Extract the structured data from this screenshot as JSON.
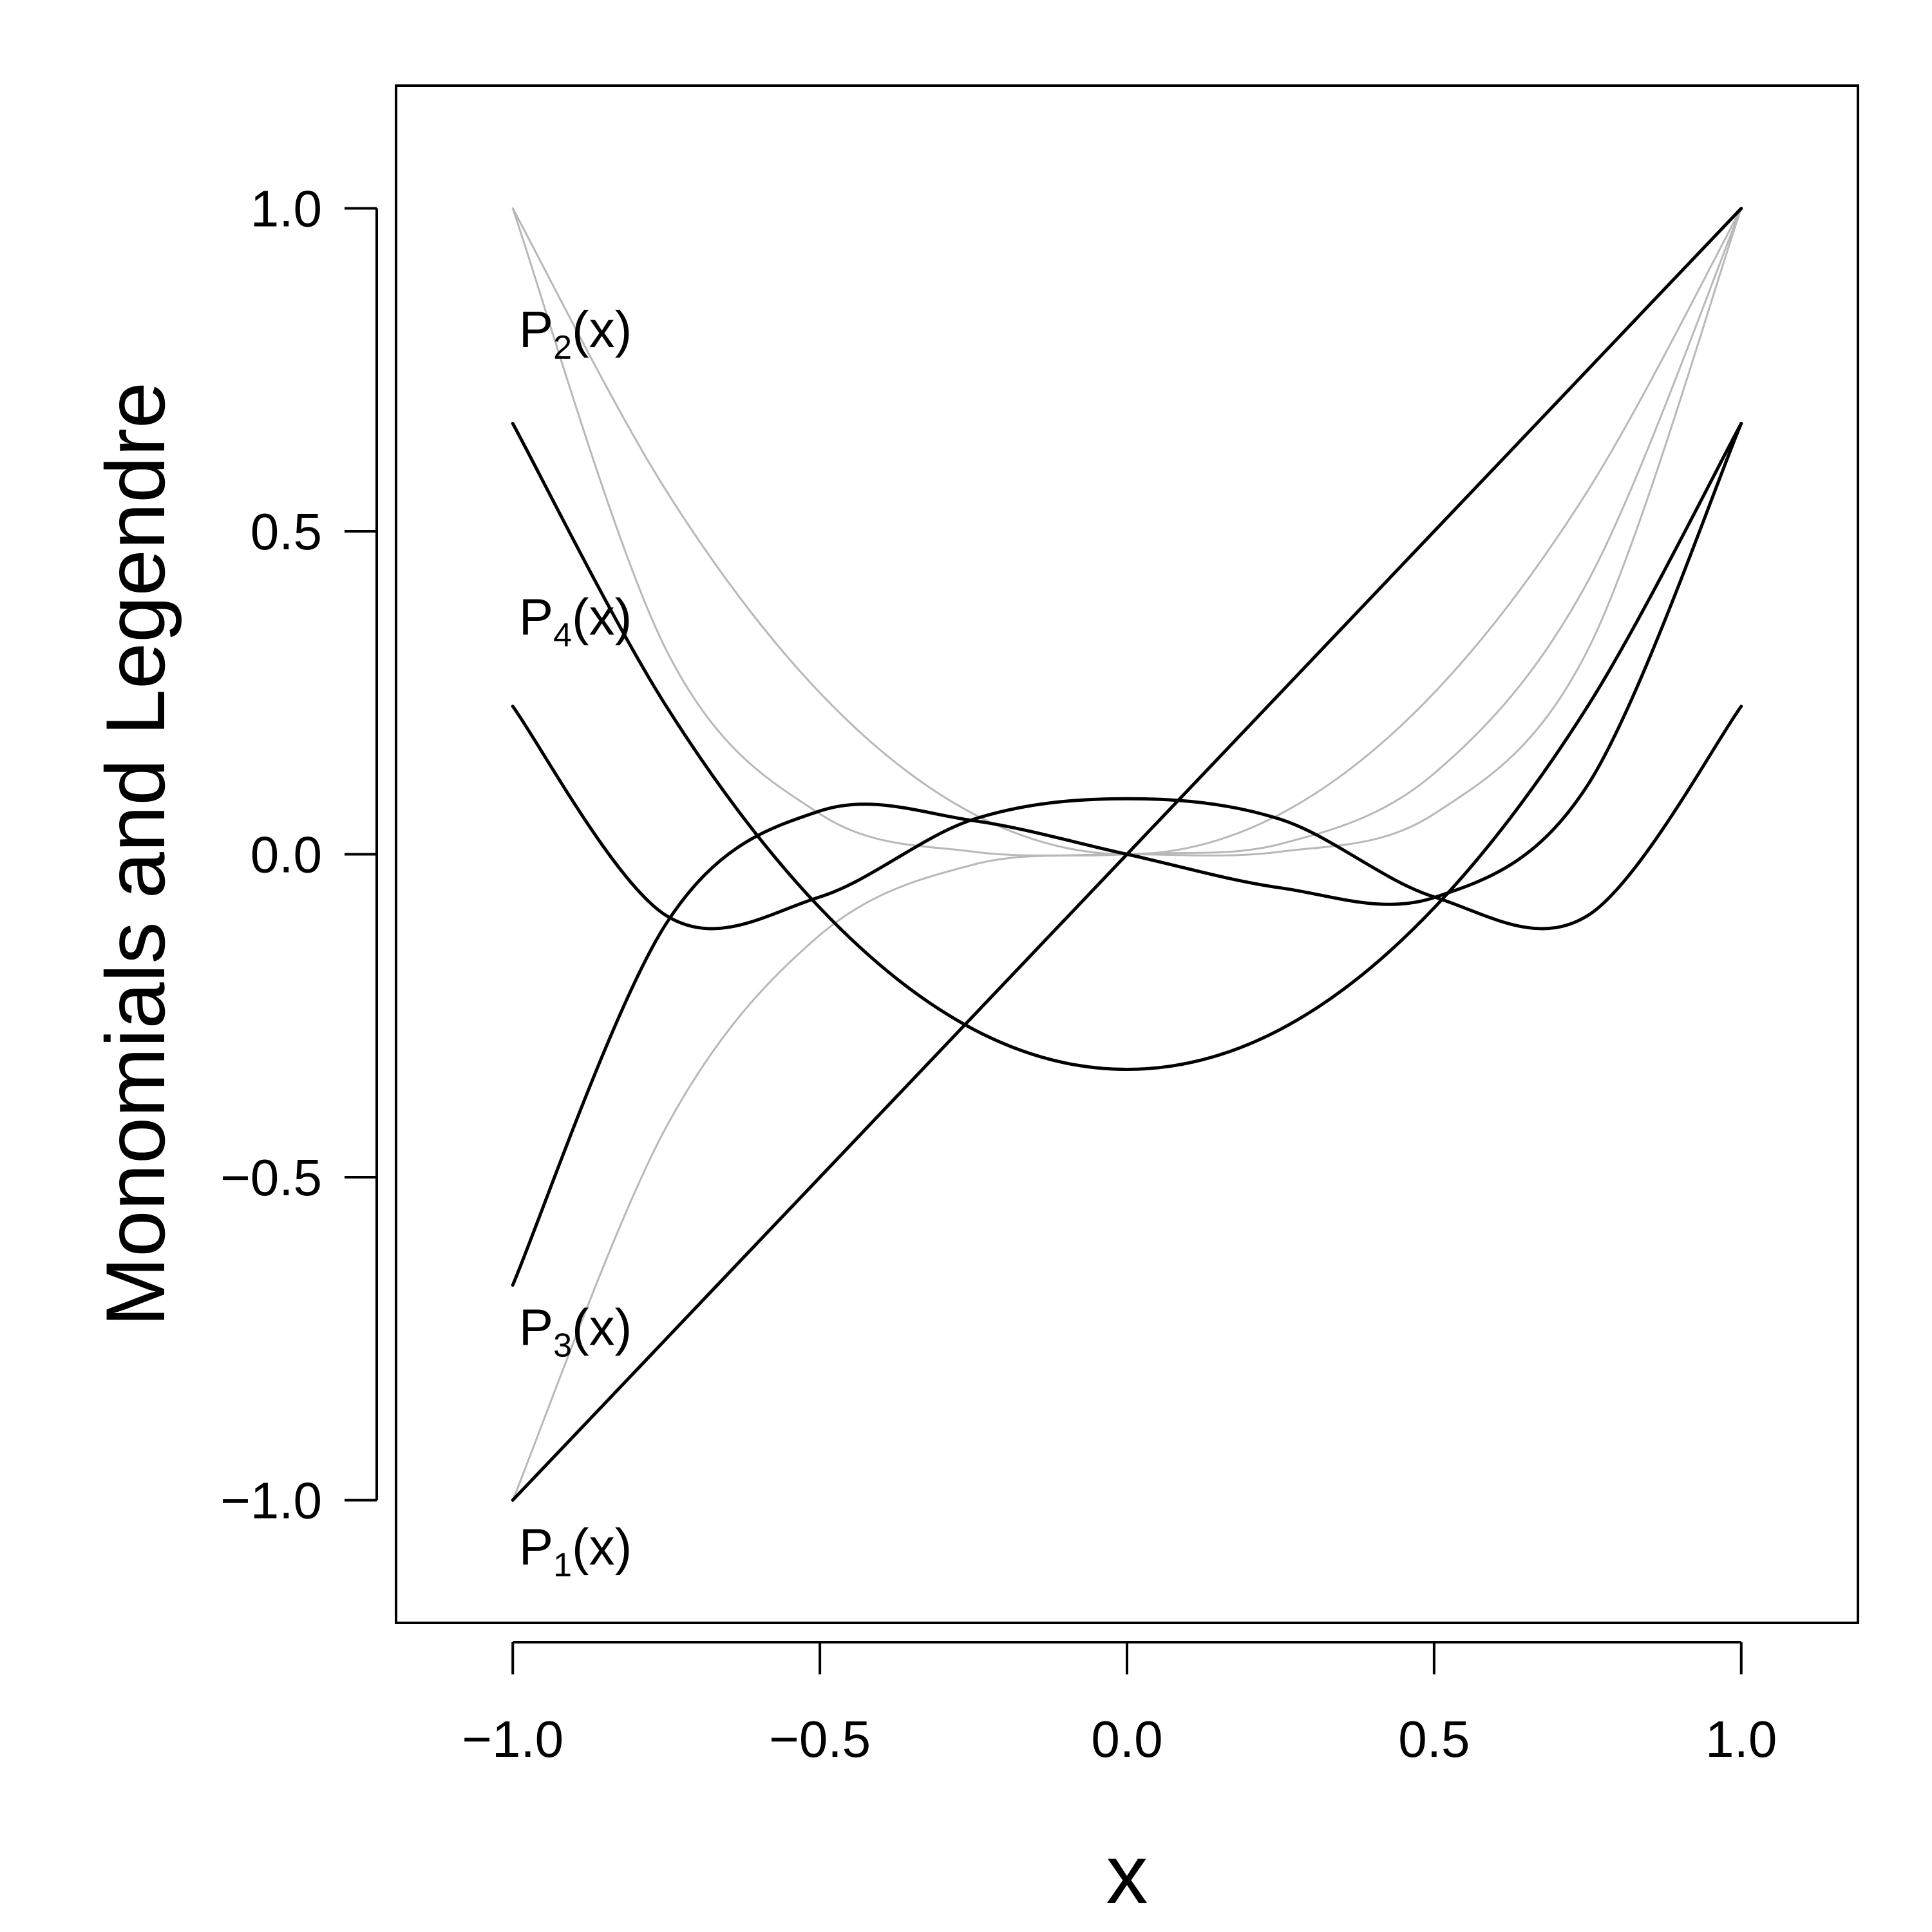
{
  "chart_data": {
    "type": "line",
    "title": "",
    "xlabel": "x",
    "ylabel": "Monomials and Legendre",
    "xlim": [
      -1.19,
      1.19
    ],
    "ylim": [
      -1.19,
      1.19
    ],
    "x_ticks": [
      -1.0,
      -0.5,
      0.0,
      0.5,
      1.0
    ],
    "x_tick_labels": [
      "−1.0",
      "−0.5",
      "0.0",
      "0.5",
      "1.0"
    ],
    "y_ticks": [
      -1.0,
      -0.5,
      0.0,
      0.5,
      1.0
    ],
    "y_tick_labels": [
      "−1.0",
      "−0.5",
      "0.0",
      "0.5",
      "1.0"
    ],
    "grid": false,
    "colors": {
      "legendre": "#000000",
      "monomial": "#b8b8b8",
      "axes": "#000000"
    },
    "x": [
      -1.0,
      -0.75,
      -0.5,
      -0.25,
      0.0,
      0.25,
      0.5,
      0.75,
      1.0
    ],
    "series": [
      {
        "group": "legendre",
        "values": [
          -1.0,
          -0.75,
          -0.5,
          -0.25,
          0.0,
          0.25,
          0.5,
          0.75,
          1.0
        ]
      },
      {
        "group": "legendre",
        "values": [
          0.667,
          0.229,
          -0.083,
          -0.271,
          -0.333,
          -0.271,
          -0.083,
          0.229,
          0.667
        ]
      },
      {
        "group": "legendre",
        "values": [
          -0.667,
          -0.107,
          0.067,
          0.052,
          0.0,
          -0.052,
          -0.067,
          0.107,
          0.667
        ]
      },
      {
        "group": "legendre",
        "values": [
          0.229,
          -0.095,
          -0.066,
          0.054,
          0.086,
          0.054,
          -0.066,
          -0.095,
          0.229
        ]
      },
      {
        "group": "monomial",
        "values": [
          1.0,
          0.5625,
          0.25,
          0.0625,
          0.0,
          0.0625,
          0.25,
          0.5625,
          1.0
        ]
      },
      {
        "group": "monomial",
        "values": [
          -1.0,
          -0.422,
          -0.125,
          -0.016,
          0.0,
          0.016,
          0.125,
          0.422,
          1.0
        ]
      },
      {
        "group": "monomial",
        "values": [
          1.0,
          0.316,
          0.0625,
          0.004,
          0.0,
          0.004,
          0.0625,
          0.316,
          1.0
        ]
      }
    ],
    "annotations": [
      {
        "main": "P",
        "sub": "2",
        "tail": "(x)",
        "x": -0.99,
        "y": 0.785
      },
      {
        "main": "P",
        "sub": "4",
        "tail": "(x)",
        "x": -0.99,
        "y": 0.34
      },
      {
        "main": "P",
        "sub": "3",
        "tail": "(x)",
        "x": -0.99,
        "y": -0.76
      },
      {
        "main": "P",
        "sub": "1",
        "tail": "(x)",
        "x": -0.99,
        "y": -1.1
      }
    ]
  }
}
